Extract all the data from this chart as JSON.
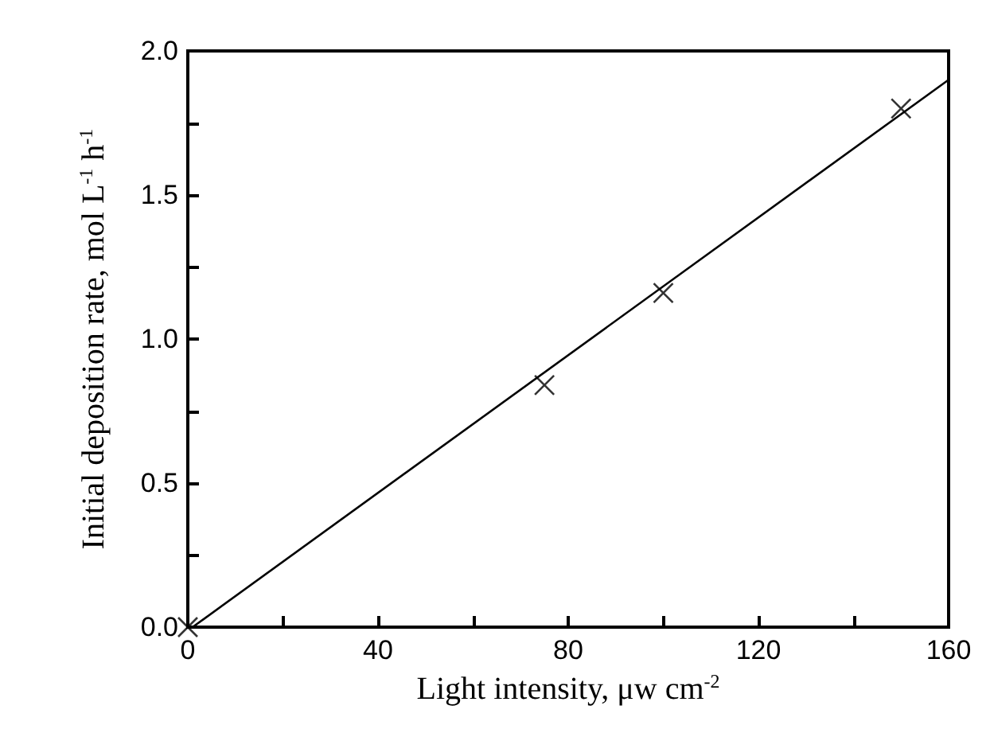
{
  "chart_data": {
    "type": "scatter",
    "xlabel": "Light intensity, μw cm$^{-2}$",
    "ylabel": "Initial deposition rate, mol L$^{-1}$ h$^{-1}$",
    "xlim": [
      0,
      160
    ],
    "ylim": [
      0,
      2.0
    ],
    "xticks": [
      0,
      {
        "value": 20,
        "label": null
      },
      40,
      {
        "value": 60,
        "label": null
      },
      80,
      {
        "value": 100,
        "label": null
      },
      120,
      {
        "value": 140,
        "label": null
      },
      160
    ],
    "yticks": [
      {
        "value": 0,
        "label": "0.0"
      },
      {
        "value": 0.25,
        "label": null
      },
      {
        "value": 0.5,
        "label": "0.5"
      },
      {
        "value": 0.75,
        "label": null
      },
      {
        "value": 1,
        "label": "1.0"
      },
      {
        "value": 1.25,
        "label": null
      },
      {
        "value": 1.5,
        "label": "1.5"
      },
      {
        "value": 1.75,
        "label": null
      },
      {
        "value": 2,
        "label": "2.0"
      }
    ],
    "marker": "cross",
    "grid": false,
    "series": [
      {
        "color": "#000000",
        "x": [
          0,
          75,
          100,
          150
        ],
        "values": [
          0,
          0.84,
          1.16,
          1.8
        ]
      },
      {
        "type": "line",
        "color": "#000000",
        "marker": "none",
        "x": [
          1,
          160
        ],
        "values": [
          0,
          1.9
        ]
      }
    ]
  }
}
